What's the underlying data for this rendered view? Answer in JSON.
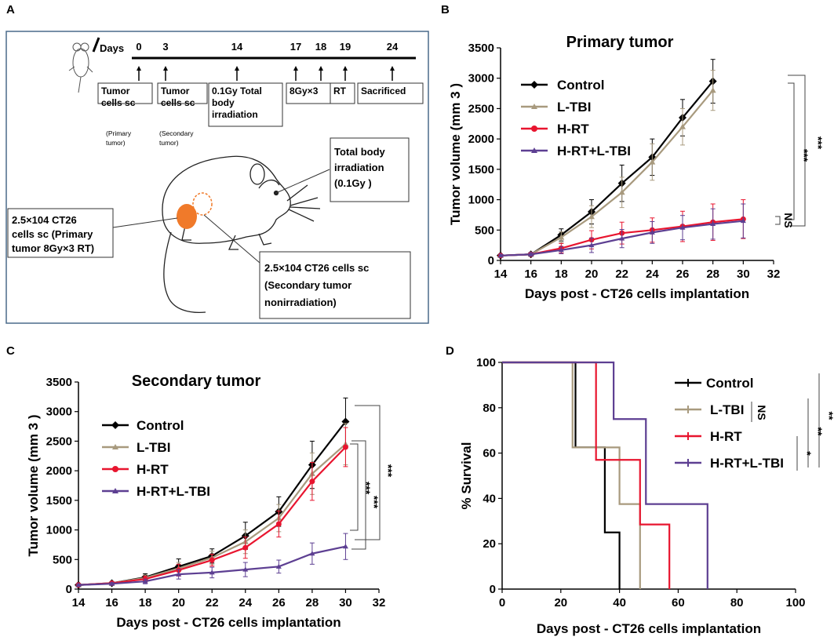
{
  "panels": {
    "A": {
      "label": "A",
      "timeline": {
        "days_label": "Days",
        "days": [
          "0",
          "3",
          "14",
          "17",
          "18",
          "19",
          "24"
        ],
        "boxes": [
          [
            "Tumor",
            "cells sc"
          ],
          [
            "Tumor",
            "cells sc"
          ],
          [
            "0.1Gy Total",
            "body",
            "irradiation"
          ],
          [
            "8Gy×3"
          ],
          [
            "RT"
          ],
          [
            "Sacrificed"
          ]
        ],
        "notes": [
          [
            "(Primary",
            "tumor)"
          ],
          [
            "(Secondary",
            "tumor)"
          ]
        ]
      },
      "callouts": {
        "tbi": [
          "Total body",
          "irradiation",
          "(0.1Gy )"
        ],
        "primary": [
          "2.5×104 CT26",
          "cells sc (Primary",
          "tumor  8Gy×3 RT)"
        ],
        "secondary": [
          "2.5×104 CT26 cells sc",
          "(Secondary tumor",
          "nonirradiation)"
        ]
      }
    },
    "B": {
      "label": "B"
    },
    "C": {
      "label": "C"
    },
    "D": {
      "label": "D"
    }
  },
  "colors": {
    "Control": "#000000",
    "L-TBI": "#a89a7e",
    "H-RT": "#e8152f",
    "H-RT+L-TBI": "#5d3f92",
    "frame_A": "#4a6a8a",
    "mouse_tumor": "#f07a2a"
  },
  "chart_data": [
    {
      "id": "B",
      "type": "line",
      "title": "Primary tumor",
      "xlabel": "Days post - CT26 cells implantation",
      "ylabel": "Tumor volume (mm 3 )",
      "xlim": [
        14,
        32
      ],
      "ylim": [
        0,
        3500
      ],
      "xticks": [
        14,
        16,
        18,
        20,
        22,
        24,
        26,
        28,
        30,
        32
      ],
      "yticks": [
        0,
        500,
        1000,
        1500,
        2000,
        2500,
        3000,
        3500
      ],
      "series": [
        {
          "name": "Control",
          "x": [
            14,
            16,
            18,
            20,
            22,
            24,
            26,
            28
          ],
          "values": [
            80,
            100,
            420,
            800,
            1270,
            1700,
            2350,
            2950
          ],
          "err": [
            20,
            30,
            100,
            200,
            300,
            300,
            300,
            360
          ]
        },
        {
          "name": "L-TBI",
          "x": [
            14,
            16,
            18,
            20,
            22,
            24,
            26,
            28
          ],
          "values": [
            80,
            100,
            380,
            720,
            1120,
            1620,
            2200,
            2800
          ],
          "err": [
            20,
            30,
            90,
            180,
            250,
            300,
            300,
            330
          ]
        },
        {
          "name": "H-RT",
          "x": [
            14,
            16,
            18,
            20,
            22,
            24,
            26,
            28,
            30
          ],
          "values": [
            80,
            100,
            200,
            340,
            450,
            500,
            560,
            630,
            680
          ],
          "err": [
            20,
            30,
            80,
            150,
            180,
            200,
            250,
            300,
            320
          ]
        },
        {
          "name": "H-RT+L-TBI",
          "x": [
            14,
            16,
            18,
            20,
            22,
            24,
            26,
            28,
            30
          ],
          "values": [
            80,
            100,
            170,
            250,
            360,
            460,
            540,
            600,
            650
          ],
          "err": [
            20,
            30,
            60,
            120,
            150,
            180,
            200,
            250,
            280
          ]
        }
      ],
      "significance": [
        "***",
        "***",
        "NS"
      ]
    },
    {
      "id": "C",
      "type": "line",
      "title": "Secondary tumor",
      "xlabel": "Days post - CT26 cells implantation",
      "ylabel": "Tumor volume (mm 3 )",
      "xlim": [
        14,
        32
      ],
      "ylim": [
        0,
        3500
      ],
      "xticks": [
        14,
        16,
        18,
        20,
        22,
        24,
        26,
        28,
        30,
        32
      ],
      "yticks": [
        0,
        500,
        1000,
        1500,
        2000,
        2500,
        3000,
        3500
      ],
      "series": [
        {
          "name": "Control",
          "x": [
            14,
            16,
            18,
            20,
            22,
            24,
            26,
            28,
            30
          ],
          "values": [
            70,
            100,
            200,
            380,
            560,
            900,
            1310,
            2100,
            2830
          ],
          "err": [
            20,
            20,
            60,
            130,
            120,
            230,
            250,
            400,
            400
          ]
        },
        {
          "name": "L-TBI",
          "x": [
            14,
            16,
            18,
            20,
            22,
            24,
            26,
            28,
            30
          ],
          "values": [
            70,
            100,
            190,
            350,
            530,
            800,
            1200,
            1950,
            2450
          ],
          "err": [
            20,
            20,
            50,
            100,
            110,
            200,
            230,
            350,
            350
          ]
        },
        {
          "name": "H-RT",
          "x": [
            14,
            16,
            18,
            20,
            22,
            24,
            26,
            28,
            30
          ],
          "values": [
            70,
            100,
            170,
            320,
            490,
            700,
            1100,
            1820,
            2400
          ],
          "err": [
            20,
            20,
            50,
            100,
            100,
            180,
            220,
            320,
            330
          ]
        },
        {
          "name": "H-RT+L-TBI",
          "x": [
            14,
            16,
            18,
            20,
            22,
            24,
            26,
            28,
            30
          ],
          "values": [
            70,
            90,
            130,
            250,
            280,
            330,
            380,
            600,
            720
          ],
          "err": [
            15,
            20,
            40,
            80,
            90,
            120,
            110,
            180,
            220
          ]
        }
      ],
      "significance": [
        "***",
        "***",
        "***"
      ]
    },
    {
      "id": "D",
      "type": "line",
      "title": "",
      "xlabel": "Days post - CT26 cells implantation",
      "ylabel": "% Survival",
      "xlim": [
        0,
        100
      ],
      "ylim": [
        0,
        100
      ],
      "xticks": [
        0,
        20,
        40,
        60,
        80,
        100
      ],
      "yticks": [
        0,
        20,
        40,
        60,
        80,
        100
      ],
      "series": [
        {
          "name": "Control",
          "x": [
            0,
            25,
            25,
            35,
            35,
            38,
            38,
            40,
            40
          ],
          "values": [
            100,
            100,
            62.5,
            62.5,
            25,
            25,
            25,
            25,
            0
          ]
        },
        {
          "name": "L-TBI",
          "x": [
            0,
            24,
            24,
            40,
            40,
            47,
            47
          ],
          "values": [
            100,
            100,
            62.5,
            62.5,
            37.5,
            37.5,
            0
          ]
        },
        {
          "name": "H-RT",
          "x": [
            0,
            32,
            32,
            47,
            47,
            57,
            57
          ],
          "values": [
            100,
            100,
            57,
            57,
            28.5,
            28.5,
            0
          ]
        },
        {
          "name": "H-RT+L-TBI",
          "x": [
            0,
            38,
            38,
            49,
            49,
            70,
            70
          ],
          "values": [
            100,
            100,
            75,
            75,
            37.5,
            37.5,
            0
          ]
        }
      ],
      "significance": [
        "NS",
        "*",
        "**",
        "**"
      ]
    }
  ]
}
